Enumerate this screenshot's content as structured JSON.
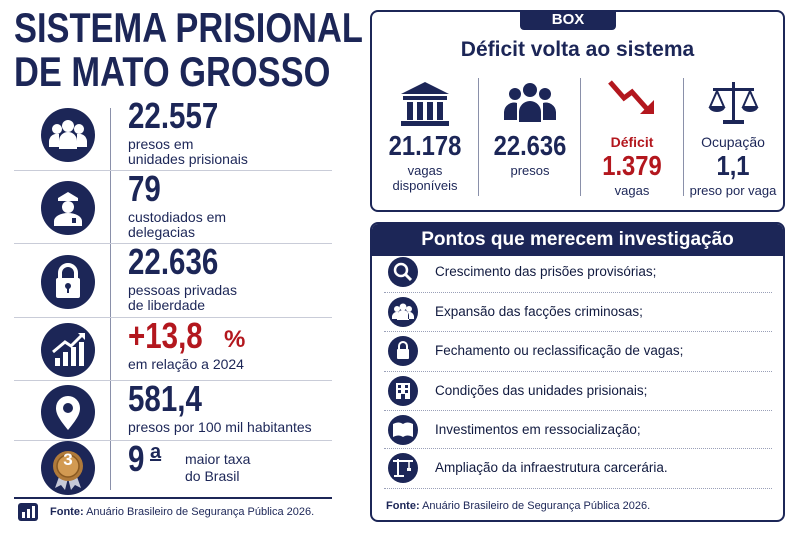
{
  "header": {
    "title_line1": "SISTEMA PRISIONAL",
    "title_line2": "DE MATO GROSSO"
  },
  "stats": [
    {
      "value": "22.557",
      "label": [
        "presos em",
        "unidades prisionais"
      ]
    },
    {
      "value": "79",
      "label": [
        "custodiados em",
        "delegacias"
      ]
    },
    {
      "value": "22.636",
      "label": [
        "pessoas privadas",
        "de liberdade"
      ]
    },
    {
      "value": "+13,8",
      "unit": "%",
      "label": [
        "em relação a 2024"
      ]
    },
    {
      "value": "581,4",
      "label": [
        "presos por 100 mil habitantes"
      ]
    },
    {
      "badge": "3",
      "value": "9",
      "suffix": "a",
      "label": [
        "maior taxa",
        "do Brasil"
      ]
    }
  ],
  "left_source": {
    "label": "Fonte:",
    "text": "Anuário Brasileiro de Segurança Pública 2026."
  },
  "box": {
    "tab": "BOX",
    "title": "Déficit volta ao sistema",
    "items": [
      {
        "value": "21.178",
        "label": [
          "vagas",
          "disponíveis"
        ]
      },
      {
        "value": "22.636",
        "label": [
          "presos"
        ]
      },
      {
        "caption": "Déficit",
        "value": "1.379",
        "label": [
          "vagas"
        ]
      },
      {
        "caption": "Ocupação",
        "value": "1,1",
        "label": [
          "preso por vaga"
        ]
      }
    ]
  },
  "pontos": {
    "title": "Pontos que merecem investigação",
    "items": [
      "Crescimento das prisões provisórias;",
      "Expansão das facções criminosas;",
      "Fechamento ou reclassificação de vagas;",
      "Condições das unidades prisionais;",
      "Investimentos em ressocialização;",
      "Ampliação da infraestrutura carcerária."
    ],
    "source": {
      "label": "Fonte:",
      "text": "Anuário Brasileiro de Segurança Pública 2026."
    }
  }
}
